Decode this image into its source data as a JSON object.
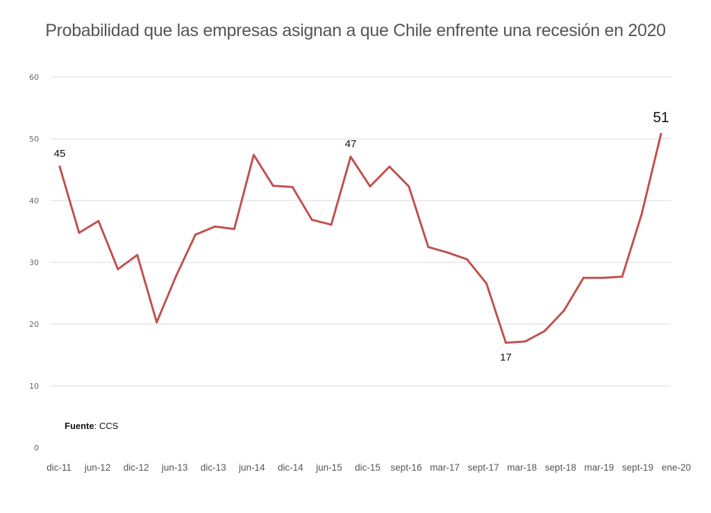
{
  "chart_data": {
    "type": "line",
    "title": "Probabilidad que las empresas asignan a que Chile enfrente una recesión en 2020",
    "xlabel": "",
    "ylabel": "",
    "ylim": [
      0,
      60
    ],
    "y_ticks": [
      "0",
      "10",
      "20",
      "30",
      "40",
      "50",
      "60"
    ],
    "grid": "horizontal",
    "x_tick_labels": [
      "dic-11",
      "jun-12",
      "dic-12",
      "jun-13",
      "dic-13",
      "jun-14",
      "dic-14",
      "jun-15",
      "dic-15",
      "sept-16",
      "mar-17",
      "sept-17",
      "mar-18",
      "sept-18",
      "mar-19",
      "sept-19",
      "ene-20"
    ],
    "series": [
      {
        "color": "#c0504d",
        "values": [
          45.5,
          34.8,
          36.7,
          28.9,
          31.2,
          20.3,
          27.8,
          34.5,
          35.8,
          35.4,
          47.4,
          42.4,
          42.2,
          36.9,
          36.1,
          47.1,
          42.3,
          45.5,
          42.3,
          32.5,
          31.6,
          30.5,
          26.6,
          17.0,
          17.2,
          18.9,
          22.2,
          27.5,
          27.5,
          27.7,
          37.8,
          50.8
        ]
      }
    ],
    "annotations": [
      {
        "index": 0,
        "text": "45"
      },
      {
        "index": 15,
        "text": "47"
      },
      {
        "index": 23,
        "text": "17"
      },
      {
        "index": 31,
        "text": "51"
      }
    ],
    "source_label": "Fuente",
    "source_value": ": CCS"
  }
}
